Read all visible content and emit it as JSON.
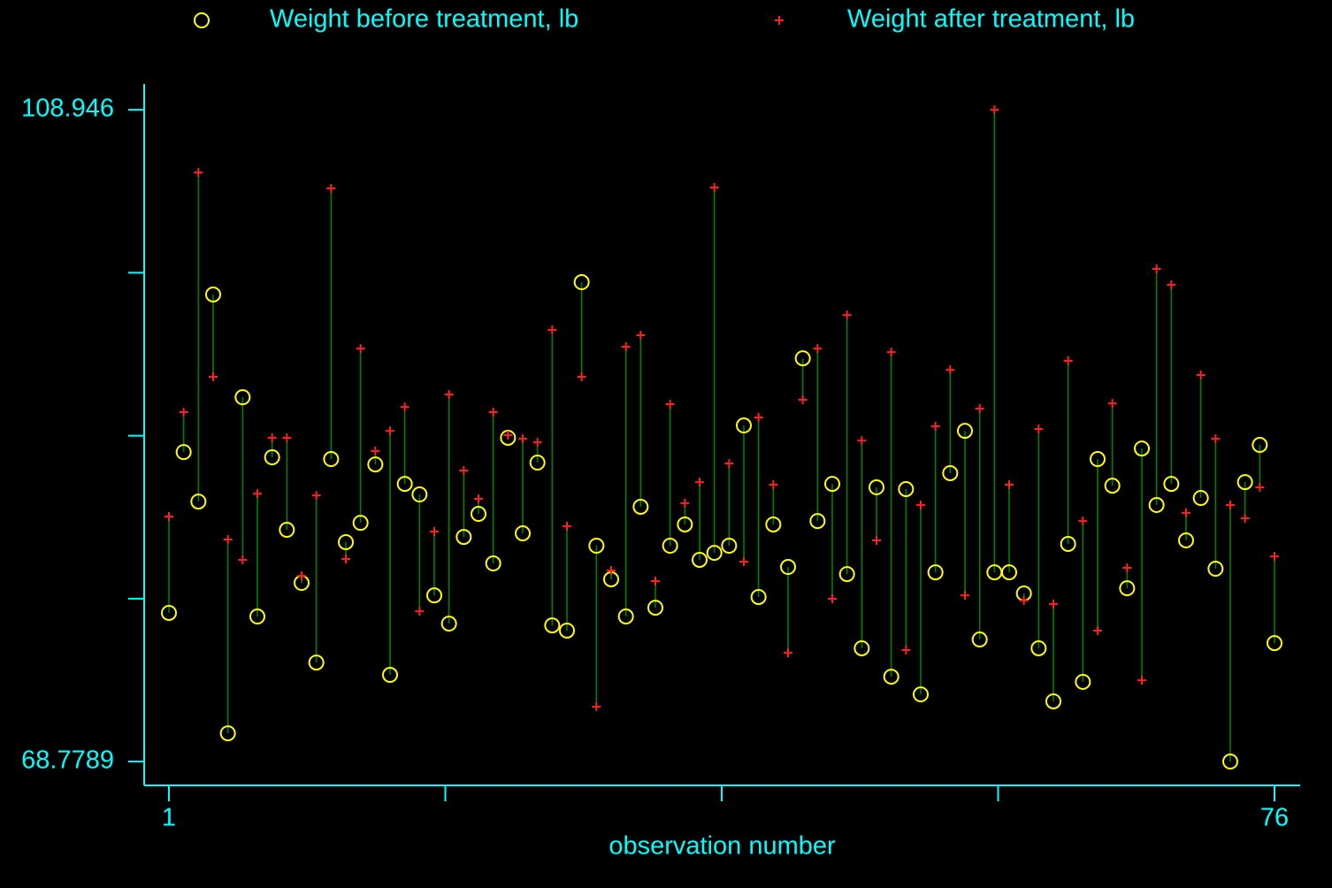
{
  "chart_data": {
    "type": "dropline",
    "x_label": "observation number",
    "x": [
      1,
      2,
      3,
      4,
      5,
      6,
      7,
      8,
      9,
      10,
      11,
      12,
      13,
      14,
      15,
      16,
      17,
      18,
      19,
      20,
      21,
      22,
      23,
      24,
      25,
      26,
      27,
      28,
      29,
      30,
      31,
      32,
      33,
      34,
      35,
      36,
      37,
      38,
      39,
      40,
      41,
      42,
      43,
      44,
      45,
      46,
      47,
      48,
      49,
      50,
      51,
      52,
      53,
      54,
      55,
      56,
      57,
      58,
      59,
      60,
      61,
      62,
      63,
      64,
      65,
      66,
      67,
      68,
      69,
      70,
      71,
      72,
      73,
      74,
      75,
      76
    ],
    "series": [
      {
        "name": "Weight before treatment, lb",
        "color": "#ffff00",
        "marker": "circle",
        "values": [
          77.94,
          87.85,
          84.8,
          97.56,
          70.52,
          91.23,
          77.72,
          87.53,
          83.06,
          79.79,
          74.88,
          87.42,
          82.3,
          83.49,
          87.09,
          74.12,
          85.89,
          85.24,
          79.02,
          77.28,
          82.62,
          84.04,
          80.99,
          88.73,
          82.84,
          87.2,
          77.17,
          76.85,
          98.32,
          82.08,
          80.01,
          77.72,
          84.48,
          78.26,
          82.08,
          83.39,
          81.21,
          81.64,
          82.08,
          89.49,
          78.92,
          83.39,
          80.77,
          93.63,
          83.6,
          85.89,
          80.33,
          75.76,
          85.68,
          74.01,
          85.57,
          72.92,
          80.44,
          86.55,
          89.16,
          76.3,
          80.44,
          80.44,
          79.14,
          75.76,
          72.49,
          82.19,
          73.69,
          87.42,
          85.78,
          79.46,
          88.07,
          84.59,
          85.89,
          82.41,
          85.02,
          80.66,
          68.7789,
          86.0,
          88.29,
          76.08
        ]
      },
      {
        "name": "Weight after treatment, lb",
        "color": "#ff2020",
        "marker": "plus",
        "values": [
          83.88,
          90.31,
          105.08,
          92.49,
          82.46,
          81.21,
          85.29,
          88.73,
          88.73,
          80.22,
          85.18,
          104.1,
          81.26,
          94.23,
          87.91,
          89.16,
          90.63,
          78.04,
          82.95,
          91.4,
          86.71,
          84.97,
          90.31,
          88.89,
          88.67,
          88.45,
          95.38,
          83.28,
          92.49,
          72.16,
          80.55,
          94.34,
          95.05,
          79.9,
          90.8,
          84.7,
          86.0,
          104.15,
          87.15,
          81.1,
          89.98,
          85.84,
          75.48,
          91.07,
          94.23,
          78.81,
          96.3,
          88.56,
          82.41,
          94.01,
          75.65,
          84.59,
          89.44,
          92.92,
          79.02,
          90.53,
          108.946,
          85.84,
          78.7,
          89.27,
          78.48,
          93.47,
          83.6,
          76.85,
          90.85,
          80.72,
          73.79,
          99.14,
          98.16,
          84.1,
          92.6,
          88.67,
          84.59,
          83.77,
          85.68,
          81.42
        ]
      }
    ],
    "connector_color": "#008000",
    "axis_color": "#00ffff",
    "text_color": "#00ffff",
    "xlim": [
      -0.68,
      77.74
    ],
    "xticks": [
      1,
      76
    ],
    "x_minor_ticks": [
      19.75,
      38.5,
      57.25
    ],
    "ylim": [
      67.31,
      110.53
    ],
    "yticks": [
      68.7789,
      108.946
    ],
    "y_minor_ticks": [
      78.82,
      88.86,
      98.9
    ],
    "legend": "top"
  }
}
